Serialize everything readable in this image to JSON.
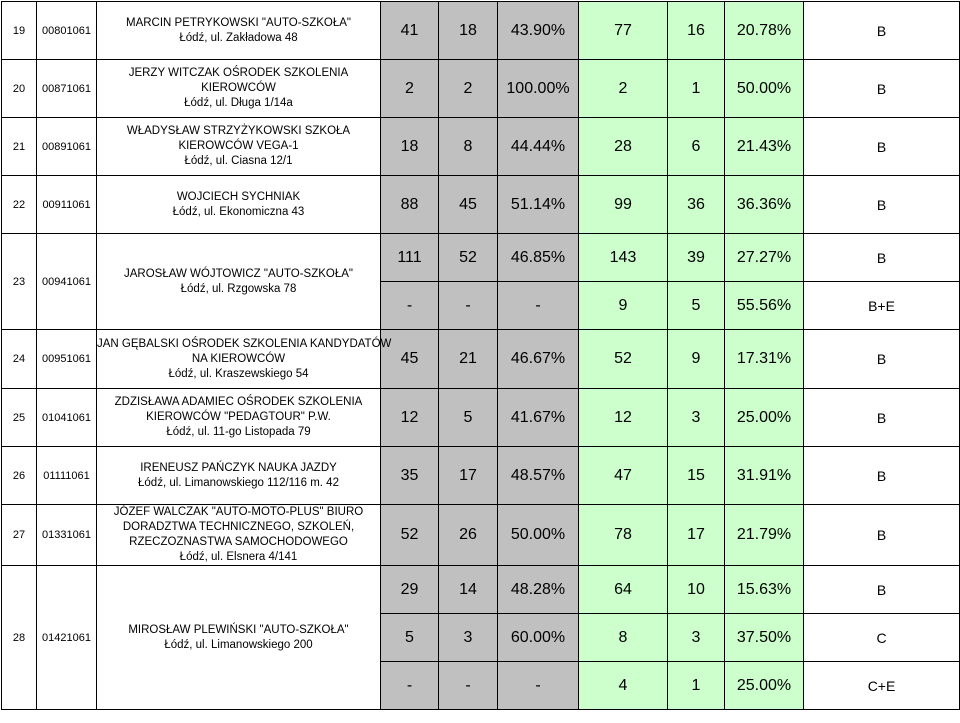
{
  "rows": [
    {
      "no": "19",
      "code": "00801061",
      "name": [
        "MARCIN PETRYKOWSKI \"AUTO-SZKOŁA\"",
        "Łódź, ul. Zakładowa 48"
      ],
      "sub": [
        {
          "a": "41",
          "b": "18",
          "c": "43.90%",
          "d": "77",
          "e": "16",
          "f": "20.78%",
          "cat": "B"
        }
      ]
    },
    {
      "no": "20",
      "code": "00871061",
      "name": [
        "JERZY WITCZAK OŚRODEK SZKOLENIA",
        "KIEROWCÓW",
        "Łódź, ul. Długa 1/14a"
      ],
      "sub": [
        {
          "a": "2",
          "b": "2",
          "c": "100.00%",
          "d": "2",
          "e": "1",
          "f": "50.00%",
          "cat": "B"
        }
      ]
    },
    {
      "no": "21",
      "code": "00891061",
      "name": [
        "WŁADYSŁAW STRZYŻYKOWSKI SZKOŁA",
        "KIEROWCÓW VEGA-1",
        "Łódź, ul. Ciasna 12/1"
      ],
      "sub": [
        {
          "a": "18",
          "b": "8",
          "c": "44.44%",
          "d": "28",
          "e": "6",
          "f": "21.43%",
          "cat": "B"
        }
      ]
    },
    {
      "no": "22",
      "code": "00911061",
      "name": [
        "WOJCIECH SYCHNIAK",
        "Łódź, ul. Ekonomiczna 43"
      ],
      "sub": [
        {
          "a": "88",
          "b": "45",
          "c": "51.14%",
          "d": "99",
          "e": "36",
          "f": "36.36%",
          "cat": "B"
        }
      ]
    },
    {
      "no": "23",
      "code": "00941061",
      "name": [
        "JAROSŁAW WÓJTOWICZ \"AUTO-SZKOŁA\"",
        "Łódź, ul. Rzgowska 78"
      ],
      "sub": [
        {
          "a": "111",
          "b": "52",
          "c": "46.85%",
          "d": "143",
          "e": "39",
          "f": "27.27%",
          "cat": "B"
        },
        {
          "a": "-",
          "b": "-",
          "c": "-",
          "d": "9",
          "e": "5",
          "f": "55.56%",
          "cat": "B+E"
        }
      ]
    },
    {
      "no": "24",
      "code": "00951061",
      "name": [
        "JAN GĘBALSKI OŚRODEK SZKOLENIA KANDYDATÓW",
        "NA KIEROWCÓW",
        "Łódź, ul. Kraszewskiego 54"
      ],
      "sub": [
        {
          "a": "45",
          "b": "21",
          "c": "46.67%",
          "d": "52",
          "e": "9",
          "f": "17.31%",
          "cat": "B"
        }
      ]
    },
    {
      "no": "25",
      "code": "01041061",
      "name": [
        "ZDZISŁAWA ADAMIEC OŚRODEK SZKOLENIA",
        "KIEROWCÓW \"PEDAGTOUR\" P.W.",
        "Łódź, ul. 11-go Listopada 79"
      ],
      "sub": [
        {
          "a": "12",
          "b": "5",
          "c": "41.67%",
          "d": "12",
          "e": "3",
          "f": "25.00%",
          "cat": "B"
        }
      ]
    },
    {
      "no": "26",
      "code": "01111061",
      "name": [
        "IRENEUSZ PAŃCZYK NAUKA JAZDY",
        "Łódź, ul. Limanowskiego 112/116 m. 42"
      ],
      "sub": [
        {
          "a": "35",
          "b": "17",
          "c": "48.57%",
          "d": "47",
          "e": "15",
          "f": "31.91%",
          "cat": "B"
        }
      ]
    },
    {
      "no": "27",
      "code": "01331061",
      "name": [
        "JÓZEF WALCZAK \"AUTO-MOTO-PLUS\" BIURO",
        "DORADZTWA TECHNICZNEGO, SZKOLEŃ,",
        "RZECZOZNASTWA SAMOCHODOWEGO",
        "Łódź, ul. Elsnera 4/141"
      ],
      "sub": [
        {
          "a": "52",
          "b": "26",
          "c": "50.00%",
          "d": "78",
          "e": "17",
          "f": "21.79%",
          "cat": "B"
        }
      ]
    },
    {
      "no": "28",
      "code": "01421061",
      "name": [
        "MIROSŁAW PLEWIŃSKI \"AUTO-SZKOŁA\"",
        "Łódź, ul. Limanowskiego 200"
      ],
      "sub": [
        {
          "a": "29",
          "b": "14",
          "c": "48.28%",
          "d": "64",
          "e": "10",
          "f": "15.63%",
          "cat": "B"
        },
        {
          "a": "5",
          "b": "3",
          "c": "60.00%",
          "d": "8",
          "e": "3",
          "f": "37.50%",
          "cat": "C"
        },
        {
          "a": "-",
          "b": "-",
          "c": "-",
          "d": "4",
          "e": "1",
          "f": "25.00%",
          "cat": "C+E"
        }
      ]
    }
  ]
}
